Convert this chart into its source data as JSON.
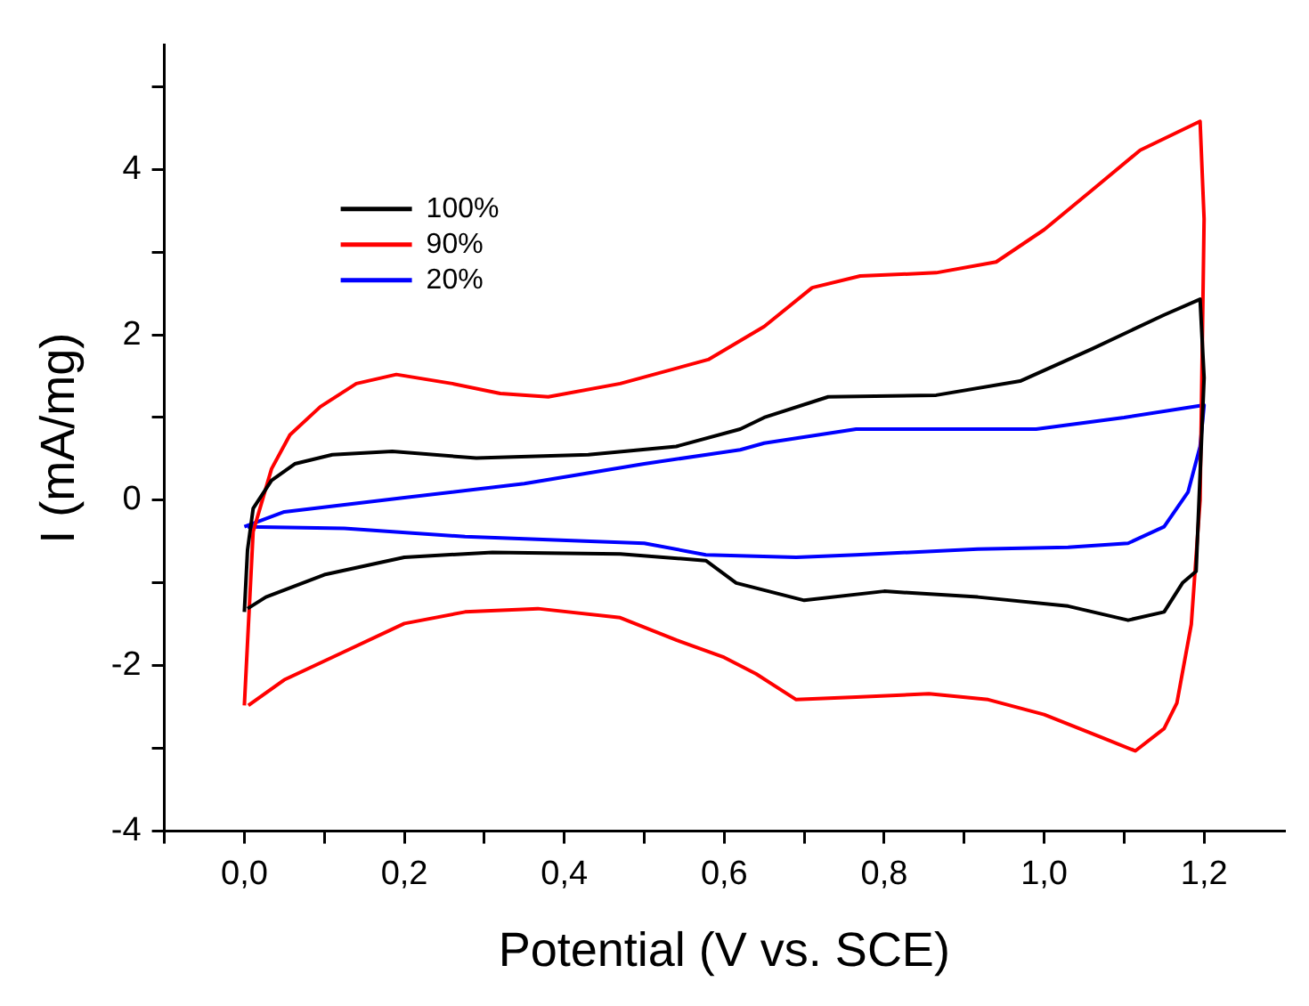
{
  "chart_data": {
    "type": "line",
    "xlabel": "Potential (V vs. SCE)",
    "ylabel": "I (mA/mg)",
    "xlim": [
      -0.1,
      1.3
    ],
    "ylim": [
      -4,
      5.5
    ],
    "xticks": [
      {
        "value": -0.1,
        "label": null
      },
      {
        "value": 0,
        "label": "0,0"
      },
      {
        "value": 0.1,
        "label": null
      },
      {
        "value": 0.2,
        "label": "0,2"
      },
      {
        "value": 0.3,
        "label": null
      },
      {
        "value": 0.4,
        "label": "0,4"
      },
      {
        "value": 0.5,
        "label": null
      },
      {
        "value": 0.6,
        "label": "0,6"
      },
      {
        "value": 0.7,
        "label": null
      },
      {
        "value": 0.8,
        "label": "0,8"
      },
      {
        "value": 0.9,
        "label": null
      },
      {
        "value": 1.0,
        "label": "1,0"
      },
      {
        "value": 1.1,
        "label": null
      },
      {
        "value": 1.2,
        "label": "1,2"
      }
    ],
    "yticks": [
      -4,
      {
        "value": -3,
        "label": null
      },
      -2,
      {
        "value": -1,
        "label": null
      },
      0,
      {
        "value": 1,
        "label": null
      },
      2,
      {
        "value": 3,
        "label": null
      },
      4,
      {
        "value": 5,
        "label": null
      }
    ],
    "grid": false,
    "legend": "top left",
    "marker": "none",
    "line_style": "solid",
    "series": [
      {
        "name": "100%",
        "color": "#000000",
        "x": [
          0,
          0.004,
          0.011,
          0.034,
          0.063,
          0.11,
          0.185,
          0.29,
          0.43,
          0.54,
          0.62,
          0.65,
          0.73,
          0.865,
          0.97,
          1.06,
          1.15,
          1.195,
          1.2,
          1.19,
          1.173,
          1.15,
          1.105,
          1.03,
          0.917,
          0.8,
          0.7,
          0.615,
          0.577,
          0.47,
          0.31,
          0.2,
          0.1,
          0.027,
          0.004
        ],
        "values": [
          -1.35,
          -0.6,
          -0.1,
          0.24,
          0.44,
          0.55,
          0.59,
          0.51,
          0.55,
          0.65,
          0.86,
          1.0,
          1.25,
          1.27,
          1.44,
          1.83,
          2.24,
          2.43,
          1.48,
          -0.86,
          -1.0,
          -1.35,
          -1.45,
          -1.28,
          -1.17,
          -1.1,
          -1.21,
          -1.0,
          -0.73,
          -0.65,
          -0.63,
          -0.69,
          -0.9,
          -1.17,
          -1.31
        ]
      },
      {
        "name": "90%",
        "color": "#ff0000",
        "x": [
          0,
          0.011,
          0.034,
          0.057,
          0.095,
          0.14,
          0.19,
          0.26,
          0.32,
          0.38,
          0.47,
          0.58,
          0.65,
          0.71,
          0.77,
          0.865,
          0.94,
          1.0,
          1.06,
          1.12,
          1.195,
          1.2,
          1.195,
          1.184,
          1.166,
          1.15,
          1.114,
          1.07,
          1.0,
          0.93,
          0.856,
          0.765,
          0.69,
          0.64,
          0.6,
          0.54,
          0.47,
          0.367,
          0.276,
          0.2,
          0.125,
          0.05,
          0.005
        ],
        "values": [
          -2.48,
          -0.38,
          0.38,
          0.79,
          1.13,
          1.41,
          1.52,
          1.41,
          1.29,
          1.25,
          1.41,
          1.7,
          2.1,
          2.57,
          2.71,
          2.75,
          2.88,
          3.27,
          3.75,
          4.23,
          4.58,
          3.4,
          0,
          -1.5,
          -2.45,
          -2.76,
          -3.03,
          -2.86,
          -2.59,
          -2.41,
          -2.34,
          -2.38,
          -2.41,
          -2.1,
          -1.9,
          -1.69,
          -1.42,
          -1.31,
          -1.35,
          -1.49,
          -1.83,
          -2.17,
          -2.48
        ]
      },
      {
        "name": "20%",
        "color": "#0000ff",
        "x": [
          0,
          0.05,
          0.2,
          0.35,
          0.5,
          0.62,
          0.65,
          0.765,
          0.88,
          0.99,
          1.1,
          1.2,
          1.195,
          1.18,
          1.15,
          1.105,
          1.03,
          0.917,
          0.765,
          0.69,
          0.577,
          0.5,
          0.276,
          0.125,
          0.004
        ],
        "values": [
          -0.32,
          -0.14,
          0.03,
          0.2,
          0.44,
          0.61,
          0.69,
          0.86,
          0.86,
          0.86,
          1.0,
          1.15,
          0.65,
          0.1,
          -0.32,
          -0.52,
          -0.57,
          -0.59,
          -0.66,
          -0.69,
          -0.66,
          -0.52,
          -0.44,
          -0.34,
          -0.32
        ]
      }
    ]
  }
}
